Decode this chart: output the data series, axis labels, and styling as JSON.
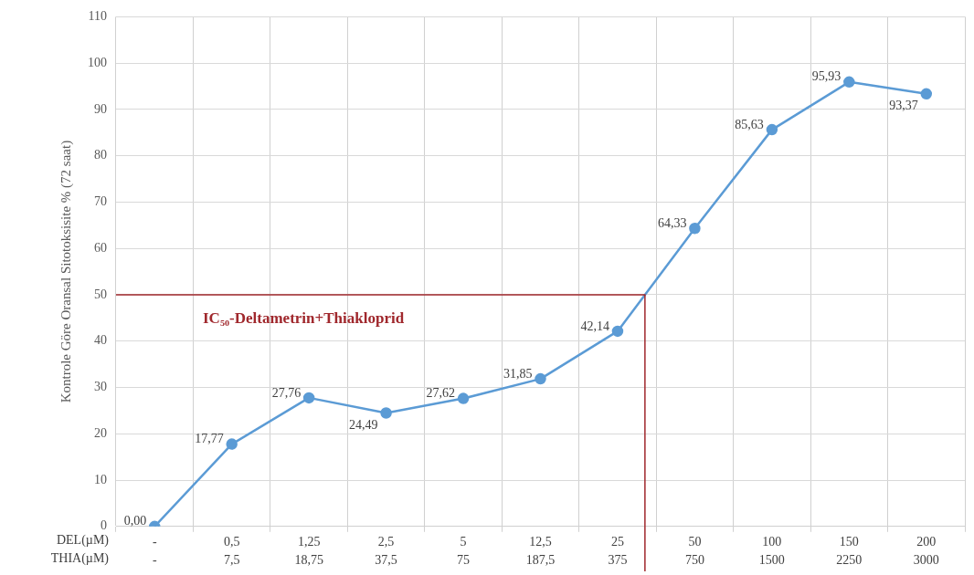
{
  "chart_data": {
    "type": "line",
    "ylabel": "Kontrole Göre Oransal Sitotoksisite % (72 saat)",
    "xlabel": "DEL(µM)\nTHIA(µM)",
    "categories": [
      "-\n-",
      "0,5\n7,5",
      "1,25\n18,75",
      "2,5\n37,5",
      "5\n75",
      "12,5\n187,5",
      "25\n375",
      "50\n750",
      "100\n1500",
      "150\n2250",
      "200\n3000"
    ],
    "series": [
      {
        "color": "#5b9bd5",
        "values": [
          0,
          17.77,
          27.76,
          24.49,
          27.62,
          31.85,
          42.14,
          64.33,
          85.63,
          95.93,
          93.37
        ],
        "value_labels": [
          "0,00",
          "17,77",
          "27,76",
          "24,49",
          "27,62",
          "31,85",
          "42,14",
          "64,33",
          "85,63",
          "95,93",
          "93,37"
        ]
      }
    ],
    "ylim": [
      0,
      110
    ],
    "yticks": [
      0,
      10,
      20,
      30,
      40,
      50,
      60,
      70,
      80,
      90,
      100,
      110
    ],
    "grid": true,
    "marker": "circle",
    "line_style": "solid",
    "ref_lines": [
      {
        "axis": "y",
        "value": 50,
        "label": "IC₅₀-Deltametrin+Thiakloprid",
        "color": "#a0282d"
      }
    ]
  }
}
